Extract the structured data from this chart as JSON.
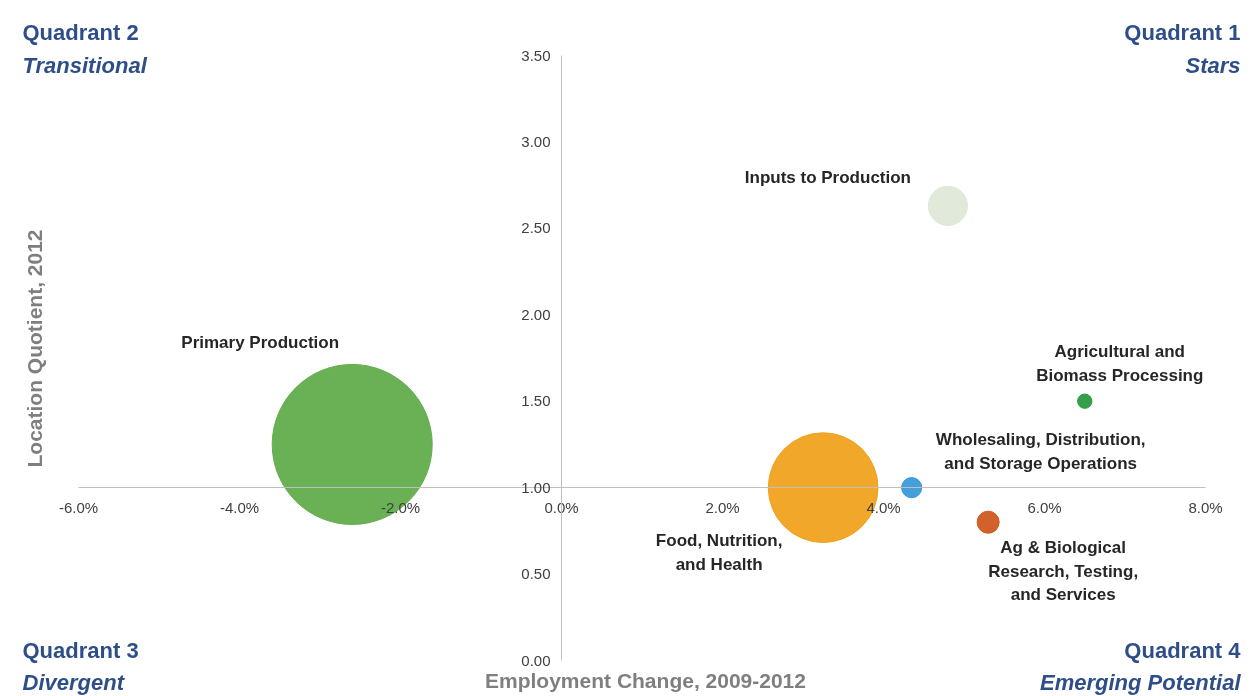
{
  "chart_data": {
    "type": "bubble",
    "xlabel": "Employment Change, 2009-2012",
    "ylabel": "Location Quotient, 2012",
    "xlim": [
      -6,
      8
    ],
    "ylim": [
      0,
      3.5
    ],
    "xticks": [
      {
        "value": -6,
        "label": "-6.0%"
      },
      {
        "value": -4,
        "label": "-4.0%"
      },
      {
        "value": -2,
        "label": "-2.0%"
      },
      {
        "value": 0,
        "label": "0.0%"
      },
      {
        "value": 2,
        "label": "2.0%"
      },
      {
        "value": 4,
        "label": "4.0%"
      },
      {
        "value": 6,
        "label": "6.0%"
      },
      {
        "value": 8,
        "label": "8.0%"
      }
    ],
    "yticks": [
      {
        "value": 0,
        "label": "0.00"
      },
      {
        "value": 0.5,
        "label": "0.50"
      },
      {
        "value": 1,
        "label": "1.00"
      },
      {
        "value": 1.5,
        "label": "1.50"
      },
      {
        "value": 2,
        "label": "2.00"
      },
      {
        "value": 2.5,
        "label": "2.50"
      },
      {
        "value": 3,
        "label": "3.00"
      },
      {
        "value": 3.5,
        "label": "3.50"
      }
    ],
    "grid": false,
    "legend": false,
    "series": [
      {
        "name": "Inputs to Production",
        "color": "#dfe9d8",
        "x": [
          4.8
        ],
        "values": [
          2.63
        ],
        "sizes": [
          0.06
        ]
      },
      {
        "name": "Primary Production",
        "color": "#62ad4c",
        "x": [
          -2.6
        ],
        "values": [
          1.25
        ],
        "sizes": [
          1
        ]
      },
      {
        "name": "Agricultural and\nBiomass Processing",
        "color": "#2a9a40",
        "x": [
          6.5
        ],
        "values": [
          1.5
        ],
        "sizes": [
          0.008
        ]
      },
      {
        "name": "Wholesaling, Distribution,\nand Storage Operations",
        "color": "#3a9ad8",
        "x": [
          4.35
        ],
        "values": [
          1.0
        ],
        "sizes": [
          0.016
        ]
      },
      {
        "name": "Food, Nutrition,\nand Health",
        "color": "#f0a21e",
        "x": [
          3.25
        ],
        "values": [
          1.0
        ],
        "sizes": [
          0.47
        ]
      },
      {
        "name": "Ag & Biological\nResearch, Testing,\nand Services",
        "color": "#d05a20",
        "x": [
          5.3
        ],
        "values": [
          0.8
        ],
        "sizes": [
          0.019
        ]
      }
    ],
    "annotations": [
      "Quadrant 2",
      "Transitional",
      "Quadrant 1",
      "Stars",
      "Quadrant 3",
      "Divergent",
      "Quadrant 4",
      "Emerging Potential"
    ]
  }
}
